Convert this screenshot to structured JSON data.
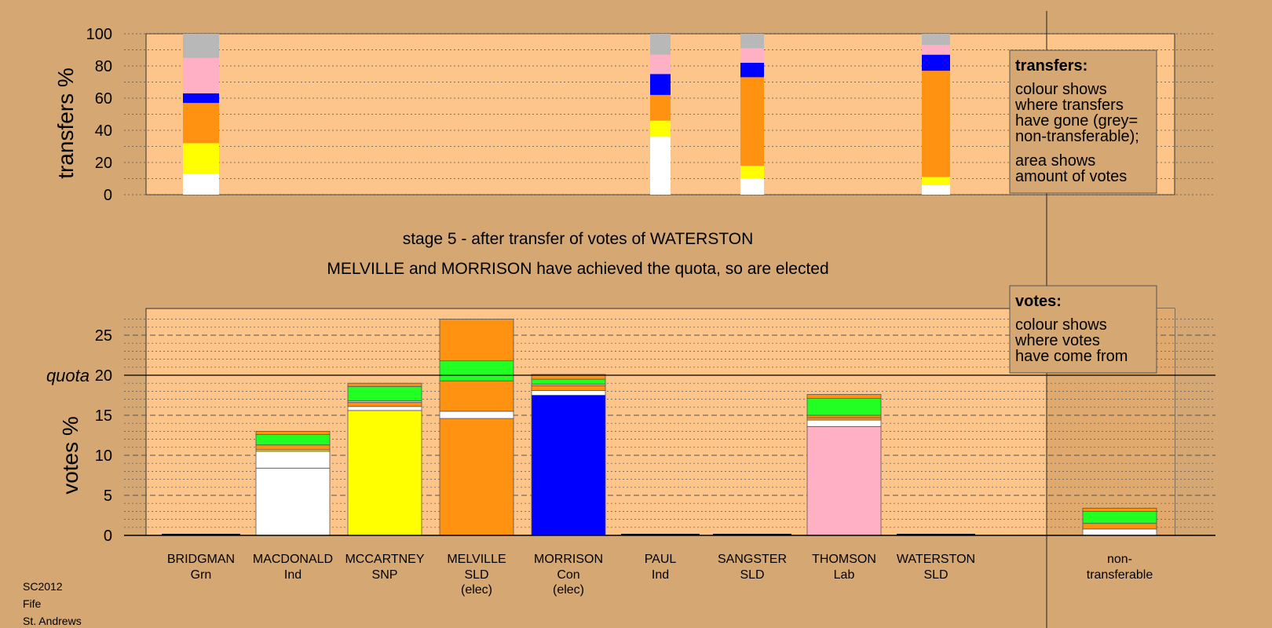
{
  "colors": {
    "page_bg": "#d4a773",
    "plot_bg": "#fdc58a",
    "shade_bg": "#e0aa6f",
    "white": "#ffffff",
    "yellow": "#ffff00",
    "orange": "#ff9211",
    "blue": "#0000ff",
    "pink": "#ffb0c4",
    "green": "#22ff22",
    "grey": "#b8b8b8"
  },
  "chart_data": [
    {
      "type": "bar",
      "stacked": true,
      "ylabel": "transfers %",
      "ylim": [
        0,
        100
      ],
      "yticks": [
        "0",
        "20",
        "40",
        "60",
        "80",
        "100"
      ],
      "grid": true,
      "bars": [
        {
          "candidate": "BRIDGMAN",
          "segments": [
            {
              "color": "white",
              "from": 0,
              "to": 13
            },
            {
              "color": "yellow",
              "from": 13,
              "to": 32
            },
            {
              "color": "orange",
              "from": 32,
              "to": 57
            },
            {
              "color": "blue",
              "from": 57,
              "to": 63
            },
            {
              "color": "pink",
              "from": 63,
              "to": 85
            },
            {
              "color": "grey",
              "from": 85,
              "to": 100
            }
          ]
        },
        {
          "candidate": "PAUL",
          "segments": [
            {
              "color": "white",
              "from": 0,
              "to": 36
            },
            {
              "color": "yellow",
              "from": 36,
              "to": 46
            },
            {
              "color": "orange",
              "from": 46,
              "to": 62
            },
            {
              "color": "blue",
              "from": 62,
              "to": 75
            },
            {
              "color": "pink",
              "from": 75,
              "to": 87
            },
            {
              "color": "grey",
              "from": 87,
              "to": 100
            }
          ]
        },
        {
          "candidate": "SANGSTER",
          "segments": [
            {
              "color": "white",
              "from": 0,
              "to": 10
            },
            {
              "color": "yellow",
              "from": 10,
              "to": 18
            },
            {
              "color": "orange",
              "from": 18,
              "to": 73
            },
            {
              "color": "blue",
              "from": 73,
              "to": 82
            },
            {
              "color": "pink",
              "from": 82,
              "to": 91
            },
            {
              "color": "grey",
              "from": 91,
              "to": 100
            }
          ]
        },
        {
          "candidate": "WATERSTON",
          "segments": [
            {
              "color": "white",
              "from": 0,
              "to": 6
            },
            {
              "color": "yellow",
              "from": 6,
              "to": 11
            },
            {
              "color": "orange",
              "from": 11,
              "to": 77
            },
            {
              "color": "blue",
              "from": 77,
              "to": 87
            },
            {
              "color": "pink",
              "from": 87,
              "to": 93
            },
            {
              "color": "grey",
              "from": 93,
              "to": 100
            }
          ]
        }
      ]
    },
    {
      "type": "bar",
      "stacked": true,
      "ylabel": "votes %",
      "ylim": [
        0,
        28
      ],
      "yticks": [
        "0",
        "5",
        "10",
        "15",
        "20",
        "25"
      ],
      "quota": 20,
      "quota_label": "quota",
      "grid": true,
      "candidates": [
        {
          "name": "BRIDGMAN",
          "party": "Grn",
          "status": ""
        },
        {
          "name": "MACDONALD",
          "party": "Ind",
          "status": ""
        },
        {
          "name": "MCCARTNEY",
          "party": "SNP",
          "status": ""
        },
        {
          "name": "MELVILLE",
          "party": "SLD",
          "status": "(elec)"
        },
        {
          "name": "MORRISON",
          "party": "Con",
          "status": "(elec)"
        },
        {
          "name": "PAUL",
          "party": "Ind",
          "status": ""
        },
        {
          "name": "SANGSTER",
          "party": "SLD",
          "status": ""
        },
        {
          "name": "THOMSON",
          "party": "Lab",
          "status": ""
        },
        {
          "name": "WATERSTON",
          "party": "SLD",
          "status": ""
        }
      ],
      "nontransferable_label": [
        "non-",
        "transferable"
      ],
      "bars": [
        {
          "candidate": "BRIDGMAN",
          "segments": []
        },
        {
          "candidate": "MACDONALD",
          "segments": [
            {
              "color": "white",
              "from": 0,
              "to": 8.4
            },
            {
              "color": "white",
              "from": 8.4,
              "to": 10.5
            },
            {
              "color": "yellow",
              "from": 10.5,
              "to": 10.7
            },
            {
              "color": "orange",
              "from": 10.7,
              "to": 11.3
            },
            {
              "color": "green",
              "from": 11.3,
              "to": 12.6
            },
            {
              "color": "orange",
              "from": 12.6,
              "to": 13.0
            }
          ]
        },
        {
          "candidate": "MCCARTNEY",
          "segments": [
            {
              "color": "yellow",
              "from": 0,
              "to": 15.6
            },
            {
              "color": "white",
              "from": 15.6,
              "to": 16.1
            },
            {
              "color": "orange",
              "from": 16.1,
              "to": 16.6
            },
            {
              "color": "pink",
              "from": 16.6,
              "to": 16.8
            },
            {
              "color": "green",
              "from": 16.8,
              "to": 18.6
            },
            {
              "color": "orange",
              "from": 18.6,
              "to": 19.0
            }
          ]
        },
        {
          "candidate": "MELVILLE",
          "segments": [
            {
              "color": "orange",
              "from": 0,
              "to": 14.6
            },
            {
              "color": "white",
              "from": 14.6,
              "to": 15.5
            },
            {
              "color": "orange",
              "from": 15.5,
              "to": 19.3
            },
            {
              "color": "green",
              "from": 19.3,
              "to": 21.8
            },
            {
              "color": "orange",
              "from": 21.8,
              "to": 27.0
            }
          ]
        },
        {
          "candidate": "MORRISON",
          "segments": [
            {
              "color": "blue",
              "from": 0,
              "to": 17.5
            },
            {
              "color": "white",
              "from": 17.5,
              "to": 18.1
            },
            {
              "color": "orange",
              "from": 18.1,
              "to": 18.7
            },
            {
              "color": "pink",
              "from": 18.7,
              "to": 18.9
            },
            {
              "color": "green",
              "from": 18.9,
              "to": 19.5
            },
            {
              "color": "orange",
              "from": 19.5,
              "to": 20.1
            }
          ]
        },
        {
          "candidate": "PAUL",
          "segments": []
        },
        {
          "candidate": "SANGSTER",
          "segments": []
        },
        {
          "candidate": "THOMSON",
          "segments": [
            {
              "color": "pink",
              "from": 0,
              "to": 13.6
            },
            {
              "color": "white",
              "from": 13.6,
              "to": 14.4
            },
            {
              "color": "orange",
              "from": 14.4,
              "to": 14.7
            },
            {
              "color": "orange",
              "from": 14.7,
              "to": 15.0
            },
            {
              "color": "green",
              "from": 15.0,
              "to": 17.1
            },
            {
              "color": "orange",
              "from": 17.1,
              "to": 17.6
            }
          ]
        },
        {
          "candidate": "WATERSTON",
          "segments": []
        },
        {
          "candidate": "non-transferable",
          "segments": [
            {
              "color": "white",
              "from": 0,
              "to": 0.8
            },
            {
              "color": "orange",
              "from": 0.8,
              "to": 1.5
            },
            {
              "color": "green",
              "from": 1.5,
              "to": 3.0
            },
            {
              "color": "orange",
              "from": 3.0,
              "to": 3.4
            }
          ]
        }
      ]
    }
  ],
  "stage_text": "stage 5 - after transfer of votes of WATERSTON",
  "elected_text": "MELVILLE and MORRISON have achieved the quota, so are elected",
  "legend_transfers": {
    "title": "transfers:",
    "lines1": [
      "colour shows",
      "where transfers",
      "have gone (grey=",
      "non-transferable);"
    ],
    "lines2": [
      "area shows",
      "amount of votes"
    ]
  },
  "legend_votes": {
    "title": "votes:",
    "lines": [
      "colour shows",
      "where votes",
      "have come from"
    ]
  },
  "footer": [
    "SC2012",
    "Fife",
    "St. Andrews"
  ]
}
